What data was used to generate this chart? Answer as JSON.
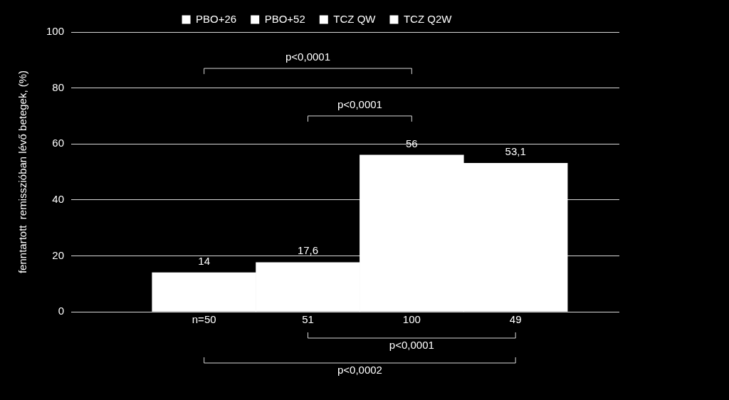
{
  "chart_data": {
    "type": "bar",
    "stacked": true,
    "categories": [
      "n=50",
      "51",
      "100",
      "49"
    ],
    "ylabel": "fenntartott  remisszióban lévő betegek, (%)",
    "series": [
      {
        "name": "PBO+26",
        "color": "#ffffff",
        "values": [
          14,
          null,
          null,
          null
        ],
        "value_labels": [
          "14",
          null,
          null,
          null
        ]
      },
      {
        "name": "PBO+52",
        "color": "#ffffff",
        "values": [
          null,
          17.6,
          null,
          null
        ],
        "value_labels": [
          null,
          "17,6",
          null,
          null
        ]
      },
      {
        "name": "TCZ QW",
        "color": "#ffffff",
        "values": [
          null,
          null,
          56,
          null
        ],
        "value_labels": [
          null,
          null,
          "56",
          null
        ]
      },
      {
        "name": "TCZ Q2W",
        "color": "#ffffff",
        "values": [
          null,
          null,
          null,
          53.1
        ],
        "value_labels": [
          null,
          null,
          null,
          "53,1"
        ]
      }
    ],
    "ylim": [
      0,
      100
    ],
    "yticks": [
      0,
      20,
      40,
      60,
      80,
      100
    ],
    "grid": "y",
    "legend": "top",
    "annotations": [
      "p<0,0001",
      "p<0,0001",
      "p<0,0001",
      "p<0,0002"
    ]
  }
}
